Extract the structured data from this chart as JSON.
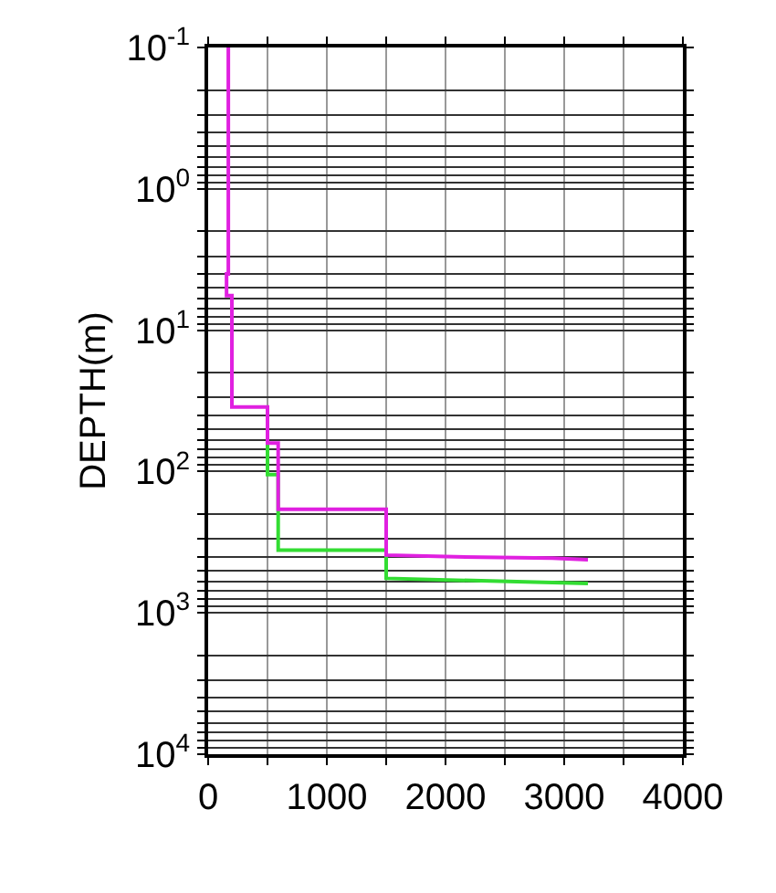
{
  "chart_data": {
    "type": "line",
    "ylabel": "DEPTH(m)",
    "log": "y",
    "grid": true,
    "marker": "none",
    "line_style": "solid",
    "xlim": [
      0,
      4000
    ],
    "ylim": [
      10000,
      0.1
    ],
    "xticks": [
      0,
      {
        "value": 500,
        "label": null
      },
      1000,
      {
        "value": 1500,
        "label": null
      },
      2000,
      {
        "value": 2500,
        "label": null
      },
      3000,
      {
        "value": 3500,
        "label": null
      },
      4000
    ],
    "yticks": [
      {
        "value": 0.1,
        "label": "10$^{-1}$"
      },
      {
        "value": 0.2,
        "label": null
      },
      {
        "value": 0.3,
        "label": null
      },
      {
        "value": 0.4,
        "label": null
      },
      {
        "value": 0.5,
        "label": null
      },
      {
        "value": 0.6,
        "label": null
      },
      {
        "value": 0.7,
        "label": null
      },
      {
        "value": 0.8,
        "label": null
      },
      {
        "value": 0.9,
        "label": null
      },
      {
        "value": 1,
        "label": "10$^{0}$"
      },
      {
        "value": 2,
        "label": null
      },
      {
        "value": 3,
        "label": null
      },
      {
        "value": 4,
        "label": null
      },
      {
        "value": 5,
        "label": null
      },
      {
        "value": 6,
        "label": null
      },
      {
        "value": 7,
        "label": null
      },
      {
        "value": 8,
        "label": null
      },
      {
        "value": 9,
        "label": null
      },
      {
        "value": 10,
        "label": "10$^{1}$"
      },
      {
        "value": 20,
        "label": null
      },
      {
        "value": 30,
        "label": null
      },
      {
        "value": 40,
        "label": null
      },
      {
        "value": 50,
        "label": null
      },
      {
        "value": 60,
        "label": null
      },
      {
        "value": 70,
        "label": null
      },
      {
        "value": 80,
        "label": null
      },
      {
        "value": 90,
        "label": null
      },
      {
        "value": 100,
        "label": "10$^{2}$"
      },
      {
        "value": 200,
        "label": null
      },
      {
        "value": 300,
        "label": null
      },
      {
        "value": 400,
        "label": null
      },
      {
        "value": 500,
        "label": null
      },
      {
        "value": 600,
        "label": null
      },
      {
        "value": 700,
        "label": null
      },
      {
        "value": 800,
        "label": null
      },
      {
        "value": 900,
        "label": null
      },
      {
        "value": 1000,
        "label": "10$^{3}$"
      },
      {
        "value": 2000,
        "label": null
      },
      {
        "value": 3000,
        "label": null
      },
      {
        "value": 4000,
        "label": null
      },
      {
        "value": 5000,
        "label": null
      },
      {
        "value": 6000,
        "label": null
      },
      {
        "value": 7000,
        "label": null
      },
      {
        "value": 8000,
        "label": null
      },
      {
        "value": 9000,
        "label": null
      },
      {
        "value": 10000,
        "label": "10$^{4}$"
      }
    ],
    "series": [
      {
        "color": "#33dd33",
        "x": [
          500,
          500,
          590,
          590,
          1500,
          1500,
          3200
        ],
        "values": [
          63,
          105,
          105,
          360,
          360,
          570,
          620
        ]
      },
      {
        "color": "#e020e0",
        "x": [
          170,
          170,
          155,
          155,
          200,
          200,
          500,
          500,
          590,
          590,
          1500,
          1500,
          2000,
          2900,
          3200
        ],
        "values": [
          0.1,
          4,
          4,
          5.7,
          5.7,
          35,
          35,
          63,
          63,
          185,
          185,
          390,
          400,
          410,
          420
        ]
      }
    ]
  }
}
